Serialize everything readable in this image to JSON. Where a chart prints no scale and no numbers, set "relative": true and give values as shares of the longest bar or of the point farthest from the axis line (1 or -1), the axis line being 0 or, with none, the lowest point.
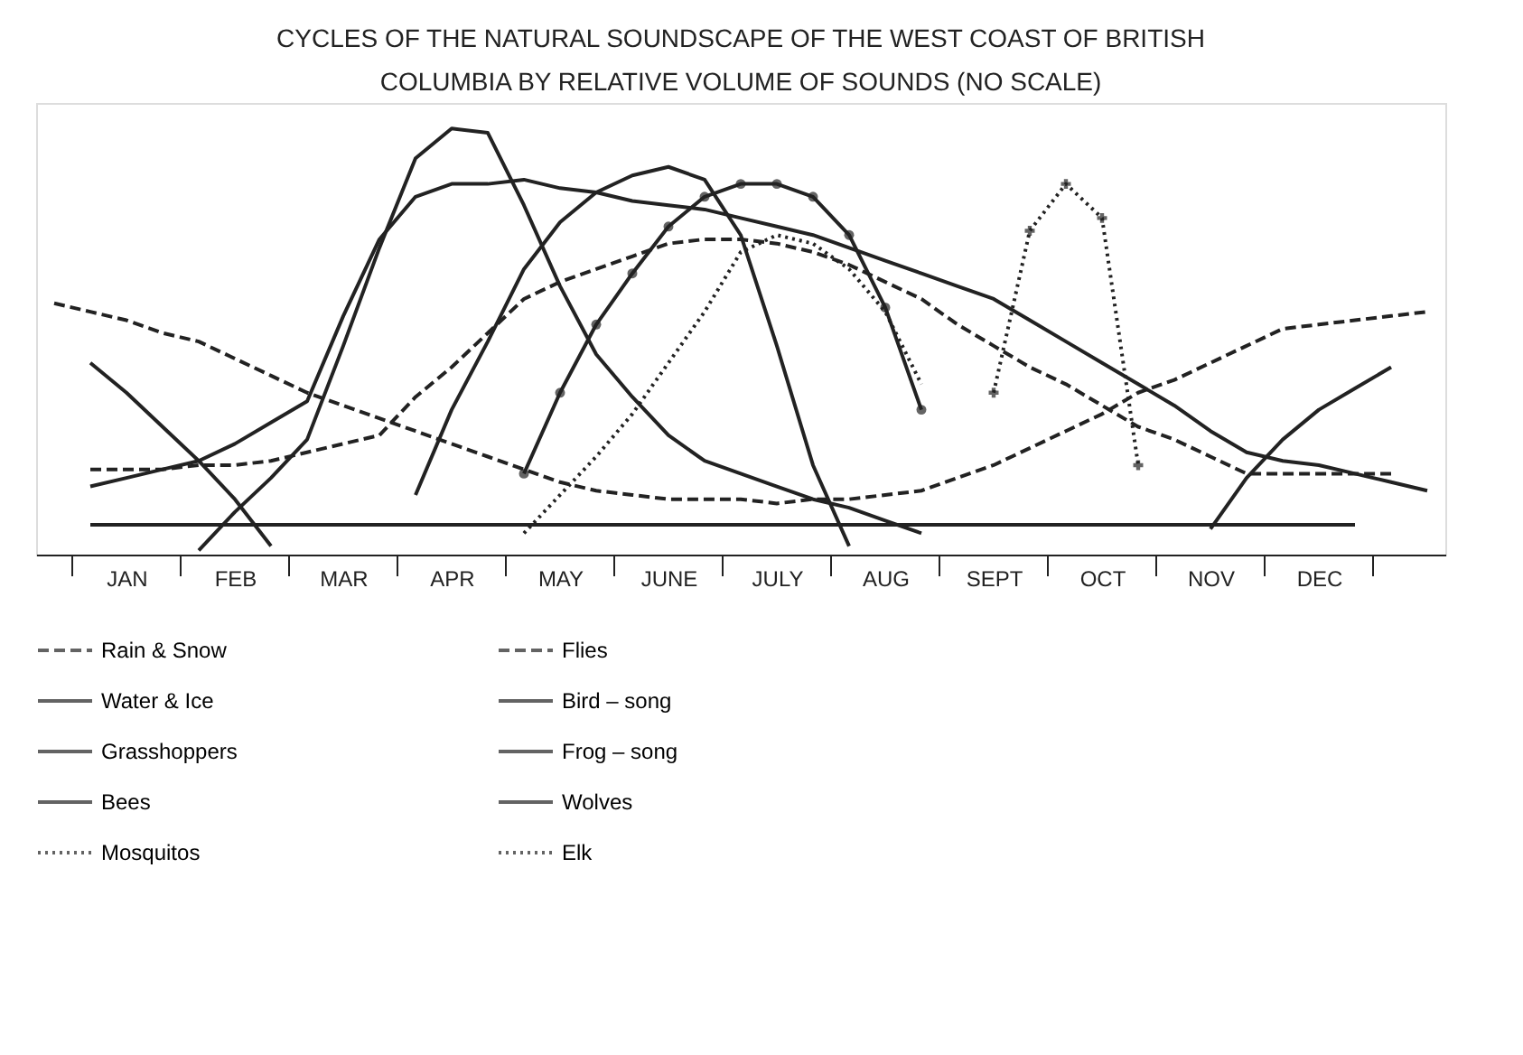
{
  "chart_data": {
    "type": "line",
    "title": "CYCLES OF THE NATURAL SOUNDSCAPE OF THE WEST COAST OF BRITISH COLUMBIA BY RELATIVE VOLUME OF SOUNDS (NO SCALE)",
    "relative": true,
    "categories": [
      null,
      null,
      "JAN",
      null,
      null,
      "FEB",
      null,
      null,
      "MAR",
      null,
      null,
      "APR",
      null,
      null,
      "MAY",
      null,
      null,
      "JUNE",
      null,
      null,
      "JULY",
      null,
      null,
      "AUG",
      null,
      null,
      "SEPT",
      null,
      null,
      "OCT",
      null,
      null,
      "NOV",
      null,
      null,
      "DEC",
      null,
      null,
      null
    ],
    "legend": "bottom",
    "line_style": "solid",
    "series": [
      {
        "name": "Rain & Snow",
        "color": "#222222",
        "line_style": "dashed",
        "values": [
          0.59,
          0.57,
          0.55,
          0.52,
          0.5,
          0.46,
          0.42,
          0.38,
          0.35,
          0.32,
          0.29,
          0.26,
          0.23,
          0.2,
          0.17,
          0.15,
          0.14,
          0.13,
          0.13,
          0.13,
          0.12,
          0.13,
          0.13,
          0.14,
          0.15,
          0.18,
          0.21,
          0.25,
          0.29,
          0.33,
          0.38,
          0.41,
          0.45,
          0.49,
          0.53,
          0.54,
          0.55,
          0.56,
          0.57
        ]
      },
      {
        "name": "Water & Ice",
        "color": "#222222",
        "values": [
          null,
          0.07,
          0.07,
          0.07,
          0.07,
          0.07,
          0.07,
          0.07,
          0.07,
          0.07,
          0.07,
          0.07,
          0.07,
          0.07,
          0.07,
          0.07,
          0.07,
          0.07,
          0.07,
          0.07,
          0.07,
          0.07,
          0.07,
          0.07,
          0.07,
          0.07,
          0.07,
          0.07,
          0.07,
          0.07,
          0.07,
          0.07,
          0.07,
          0.07,
          0.07,
          0.07,
          0.07,
          null,
          null
        ]
      },
      {
        "name": "Grasshoppers",
        "color": "#222222",
        "values": [
          null,
          null,
          null,
          null,
          null,
          null,
          null,
          null,
          null,
          null,
          0.14,
          0.34,
          0.5,
          0.67,
          0.78,
          0.85,
          0.89,
          0.91,
          0.88,
          0.75,
          0.49,
          0.21,
          0.02,
          null,
          null,
          null,
          null,
          null,
          null,
          null,
          null,
          null,
          null,
          null,
          null,
          null,
          null,
          null,
          null
        ]
      },
      {
        "name": "Bees",
        "color": "#222222",
        "marker": "circle",
        "values": [
          null,
          null,
          null,
          null,
          null,
          null,
          null,
          null,
          null,
          null,
          null,
          null,
          null,
          0.19,
          0.38,
          0.54,
          0.66,
          0.77,
          0.84,
          0.87,
          0.87,
          0.84,
          0.75,
          0.58,
          0.34,
          null,
          null,
          null,
          null,
          null,
          null,
          null,
          null,
          null,
          null,
          null,
          null,
          null,
          null
        ]
      },
      {
        "name": "Mosquitos",
        "color": "#222222",
        "line_style": "dotted",
        "values": [
          null,
          null,
          null,
          null,
          null,
          null,
          null,
          null,
          null,
          null,
          null,
          null,
          null,
          0.05,
          0.14,
          0.23,
          0.33,
          0.45,
          0.57,
          0.71,
          0.75,
          0.73,
          0.67,
          0.57,
          0.4,
          null,
          null,
          null,
          null,
          null,
          null,
          null,
          null,
          null,
          null,
          null,
          null,
          null,
          null
        ]
      },
      {
        "name": "Flies",
        "color": "#222222",
        "line_style": "dashed",
        "values": [
          null,
          0.2,
          0.2,
          0.2,
          0.21,
          0.21,
          0.22,
          0.24,
          0.26,
          0.28,
          0.37,
          0.44,
          0.52,
          0.6,
          0.64,
          0.67,
          0.7,
          0.73,
          0.74,
          0.74,
          0.73,
          0.71,
          0.68,
          0.64,
          0.6,
          0.54,
          0.49,
          0.44,
          0.4,
          0.35,
          0.3,
          0.27,
          0.23,
          0.19,
          0.19,
          0.19,
          0.19,
          0.19,
          null
        ]
      },
      {
        "name": "Bird – song",
        "color": "#222222",
        "values": [
          null,
          0.16,
          0.18,
          0.2,
          0.22,
          0.26,
          0.31,
          0.36,
          0.56,
          0.74,
          0.84,
          0.87,
          0.87,
          0.88,
          0.86,
          0.85,
          0.83,
          0.82,
          0.81,
          0.79,
          0.77,
          0.75,
          0.72,
          0.69,
          0.66,
          0.63,
          0.6,
          0.55,
          0.5,
          0.45,
          0.4,
          0.35,
          0.29,
          0.24,
          0.22,
          0.21,
          0.19,
          0.17,
          0.15
        ]
      },
      {
        "name": "Frog – song",
        "color": "#222222",
        "values": [
          null,
          null,
          null,
          null,
          0.01,
          0.1,
          0.18,
          0.27,
          0.49,
          0.72,
          0.93,
          1.0,
          0.99,
          0.82,
          0.63,
          0.47,
          0.37,
          0.28,
          0.22,
          0.19,
          0.16,
          0.13,
          0.11,
          0.08,
          0.05,
          null,
          null,
          null,
          null,
          null,
          null,
          null,
          null,
          null,
          null,
          null,
          null,
          null,
          null
        ]
      },
      {
        "name": "Wolves",
        "color": "#222222",
        "values": [
          null,
          0.45,
          0.38,
          0.3,
          0.22,
          0.13,
          0.02,
          null,
          null,
          null,
          null,
          null,
          null,
          null,
          null,
          null,
          null,
          null,
          null,
          null,
          null,
          null,
          null,
          null,
          null,
          null,
          null,
          null,
          null,
          null,
          null,
          null,
          0.06,
          0.18,
          0.27,
          0.34,
          0.39,
          0.44,
          null
        ]
      },
      {
        "name": "Elk",
        "color": "#222222",
        "line_style": "dotted",
        "marker": "cross",
        "values": [
          null,
          null,
          null,
          null,
          null,
          null,
          null,
          null,
          null,
          null,
          null,
          null,
          null,
          null,
          null,
          null,
          null,
          null,
          null,
          null,
          null,
          null,
          null,
          null,
          null,
          null,
          0.38,
          0.76,
          0.87,
          0.79,
          0.21,
          null,
          null,
          null,
          null,
          null,
          null,
          null,
          null
        ]
      }
    ]
  }
}
